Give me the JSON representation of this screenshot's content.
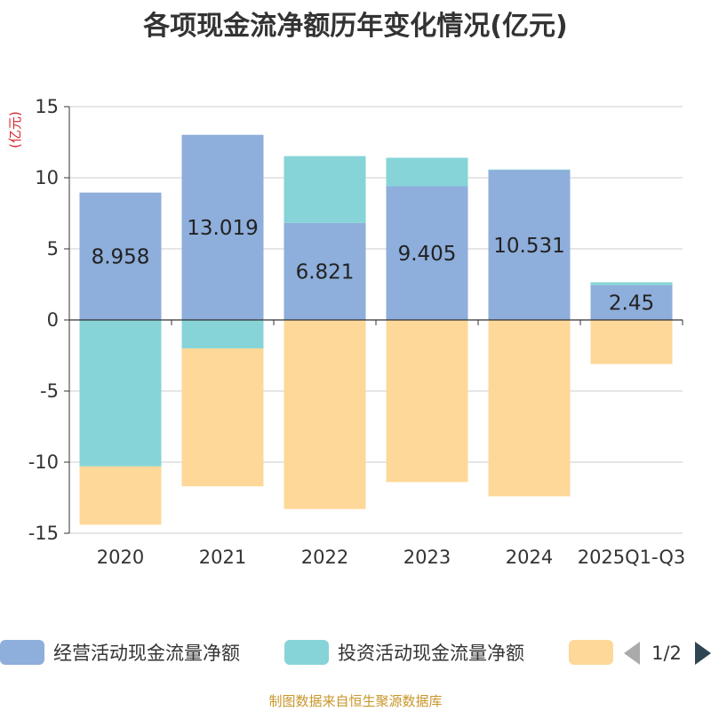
{
  "title": "各项现金流净额历年变化情况(亿元)",
  "source": "制图数据来自恒生聚源数据库",
  "chart_data": {
    "type": "bar",
    "stacked": true,
    "ylabel": "(亿元)",
    "ylim": [
      -15,
      15
    ],
    "yticks": [
      15,
      10,
      5,
      0,
      -5,
      -10,
      -15
    ],
    "grid": true,
    "legend_position": "bottom",
    "categories": [
      "2020",
      "2021",
      "2022",
      "2023",
      "2024",
      "2025Q1-Q3"
    ],
    "series": [
      {
        "name": "经营活动现金流量净额",
        "color": "#8eaedb",
        "values": [
          8.958,
          13.019,
          6.821,
          9.405,
          10.531,
          2.45
        ],
        "labels": [
          "8.958",
          "13.019",
          "6.821",
          "9.405",
          "10.531",
          "2.45"
        ]
      },
      {
        "name": "投资活动现金流量净额",
        "color": "#86d4d7",
        "values": [
          -10.3,
          -2.0,
          4.7,
          2.0,
          0.05,
          0.2
        ]
      },
      {
        "name": "",
        "color": "#fed899",
        "values": [
          -4.1,
          -9.7,
          -13.3,
          -11.4,
          -12.4,
          -3.1
        ]
      }
    ],
    "legend_page": "1/2"
  }
}
